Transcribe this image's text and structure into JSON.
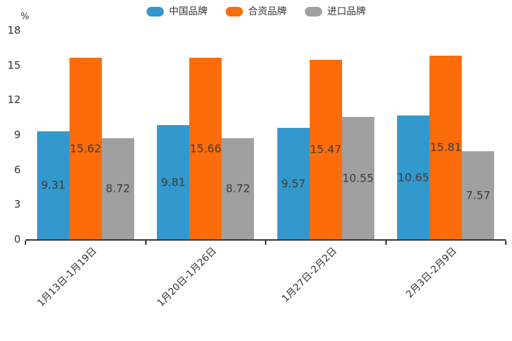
{
  "unit_label": "%",
  "legend": [
    {
      "label": "中国品牌",
      "color": "#3398CC"
    },
    {
      "label": "合资品牌",
      "color": "#FB6D0A"
    },
    {
      "label": "进口品牌",
      "color": "#A0A0A0"
    }
  ],
  "chart_data": {
    "type": "bar",
    "categories": [
      "1月13日-1月19日",
      "1月20日-1月26日",
      "1月27日-2月2日",
      "2月3日-2月9日"
    ],
    "series": [
      {
        "name": "中国品牌",
        "color": "#3398CC",
        "values": [
          9.31,
          9.81,
          9.57,
          10.65
        ]
      },
      {
        "name": "合资品牌",
        "color": "#FB6D0A",
        "values": [
          15.62,
          15.66,
          15.47,
          15.81
        ]
      },
      {
        "name": "进口品牌",
        "color": "#A0A0A0",
        "values": [
          8.72,
          8.72,
          10.55,
          7.57
        ]
      }
    ],
    "title": "",
    "xlabel": "",
    "ylabel": "%",
    "ylim": [
      0,
      18
    ],
    "yticks": [
      0,
      3,
      6,
      9,
      12,
      15,
      18
    ],
    "grid": false,
    "legend_position": "top",
    "value_labels": "inside-center",
    "value_label_decimals": 2
  }
}
